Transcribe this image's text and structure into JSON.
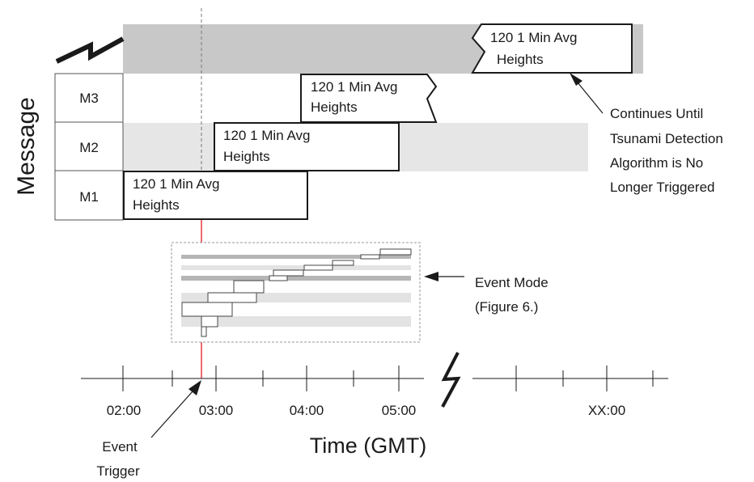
{
  "y_axis_label": "Message",
  "rows": [
    {
      "label": "M3"
    },
    {
      "label": "M2"
    },
    {
      "label": "M1"
    }
  ],
  "messages": [
    {
      "id": "m1",
      "line1": "120  1 Min Avg",
      "line2": "Heights"
    },
    {
      "id": "m2",
      "line1": "120  1 Min Avg",
      "line2": "Heights"
    },
    {
      "id": "m3",
      "line1": "120  1 Min Avg",
      "line2": "Heights"
    },
    {
      "id": "m4",
      "line1": "120  1 Min Avg",
      "line2": "Heights"
    }
  ],
  "continue_note": [
    "Continues Until",
    "Tsunami Detection",
    "Algorithm is No",
    "Longer Triggered"
  ],
  "event_mode_note": [
    "Event Mode",
    "(Figure 6.)"
  ],
  "time_ticks": [
    "02:00",
    "03:00",
    "04:00",
    "05:00",
    "XX:00"
  ],
  "x_axis_label": "Time  (GMT)",
  "event_trigger_note": [
    "Event",
    "Trigger"
  ],
  "colors": {
    "band_dark": "#c8c8c8",
    "band_light": "#e6e6e6",
    "trigger_line": "#e8383d",
    "line": "#1a1a1a"
  }
}
